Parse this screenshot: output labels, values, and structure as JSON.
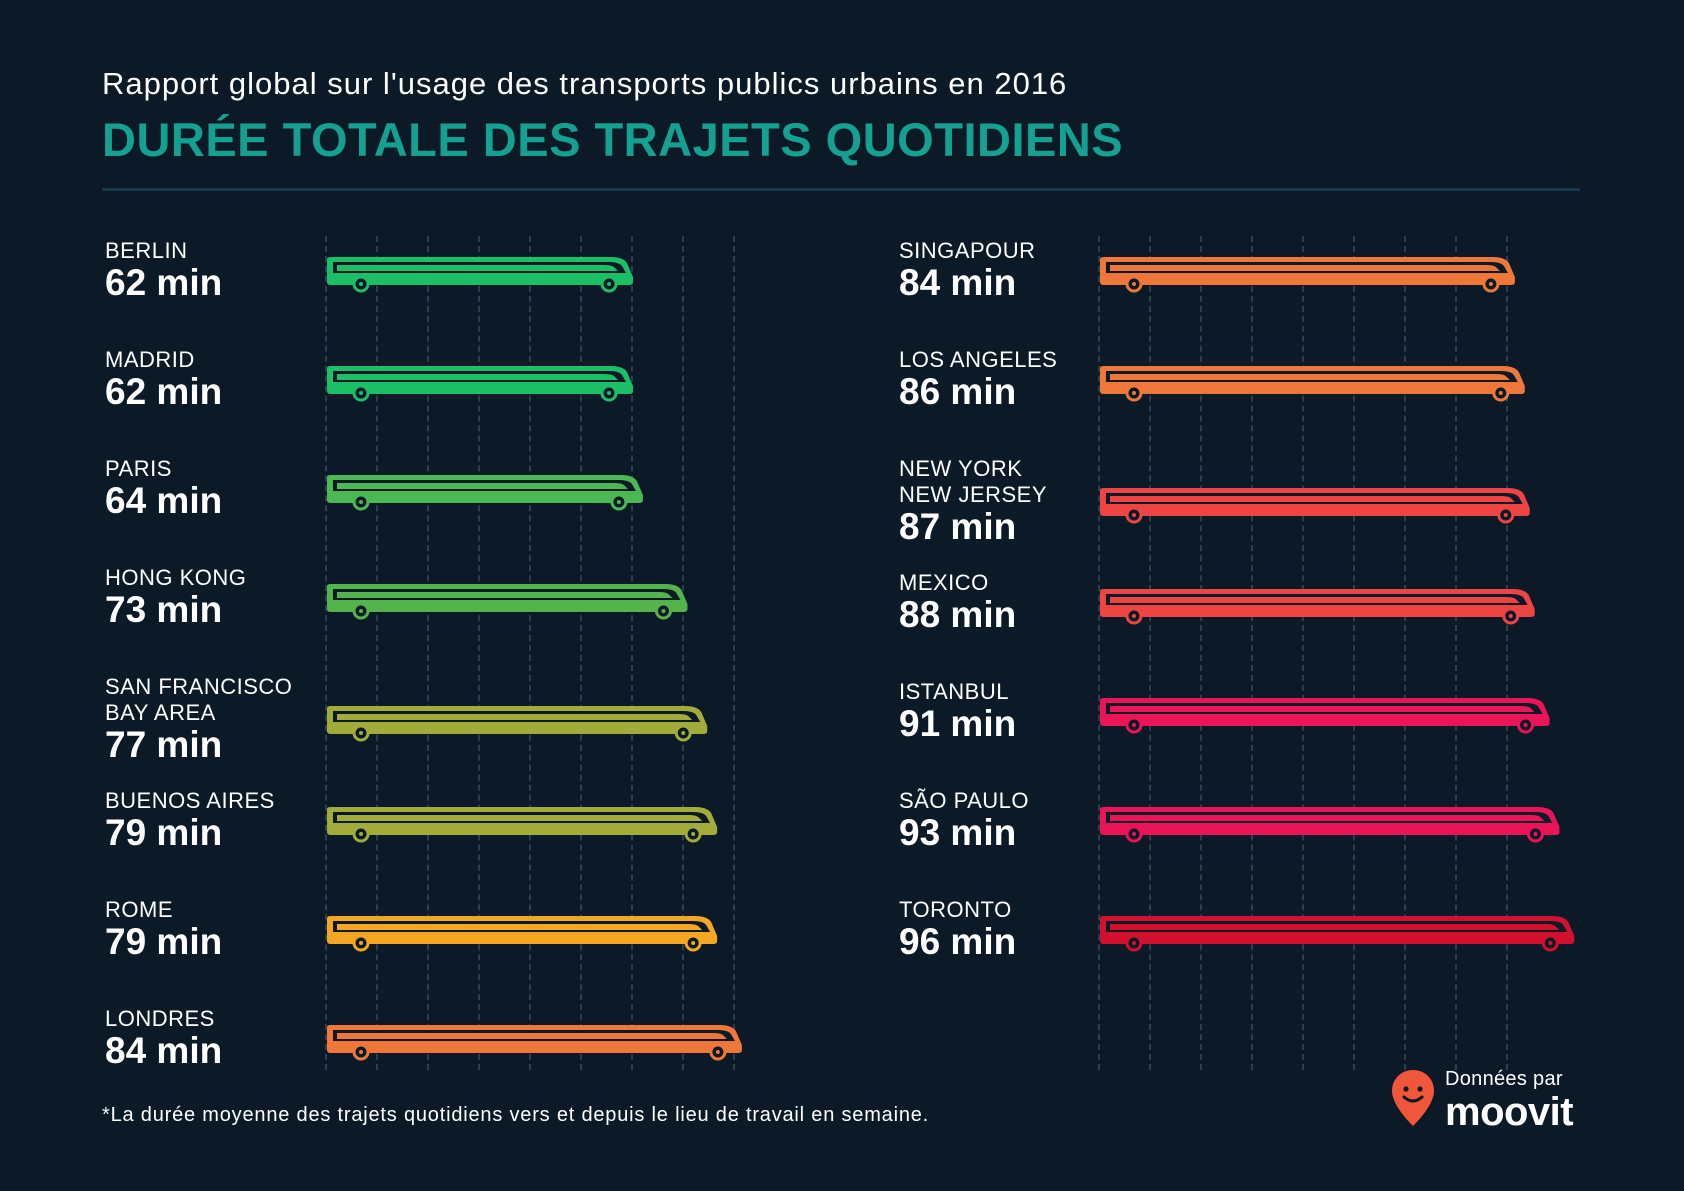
{
  "header": {
    "subtitle": "Rapport global sur l'usage des transports publics urbains en 2016",
    "title": "DURÉE TOTALE DES TRAJETS QUOTIDIENS"
  },
  "chart_data": {
    "type": "bar",
    "title": "DURÉE TOTALE DES TRAJETS QUOTIDIENS",
    "subtitle": "Rapport global sur l'usage des transports publics urbains en 2016",
    "unit": "min",
    "columns": [
      [
        {
          "city": [
            "BERLIN"
          ],
          "value": 62,
          "label": "62 min",
          "color": "#1abf66"
        },
        {
          "city": [
            "MADRID"
          ],
          "value": 62,
          "label": "62 min",
          "color": "#1abf66"
        },
        {
          "city": [
            "PARIS"
          ],
          "value": 64,
          "label": "64 min",
          "color": "#4cb854"
        },
        {
          "city": [
            "HONG KONG"
          ],
          "value": 73,
          "label": "73 min",
          "color": "#55b34c"
        },
        {
          "city": [
            "SAN FRANCISCO",
            "BAY AREA"
          ],
          "value": 77,
          "label": "77 min",
          "color": "#a3ac3a"
        },
        {
          "city": [
            "BUENOS AIRES"
          ],
          "value": 79,
          "label": "79 min",
          "color": "#a3ac3a"
        },
        {
          "city": [
            "ROME"
          ],
          "value": 79,
          "label": "79 min",
          "color": "#f5a623"
        },
        {
          "city": [
            "LONDRES"
          ],
          "value": 84,
          "label": "84 min",
          "color": "#f0773a"
        }
      ],
      [
        {
          "city": [
            "SINGAPOUR"
          ],
          "value": 84,
          "label": "84 min",
          "color": "#f0773a"
        },
        {
          "city": [
            "LOS ANGELES"
          ],
          "value": 86,
          "label": "86 min",
          "color": "#f0773a"
        },
        {
          "city": [
            "NEW YORK",
            "NEW JERSEY"
          ],
          "value": 87,
          "label": "87 min",
          "color": "#ee4444"
        },
        {
          "city": [
            "MEXICO"
          ],
          "value": 88,
          "label": "88 min",
          "color": "#ee4444"
        },
        {
          "city": [
            "ISTANBUL"
          ],
          "value": 91,
          "label": "91 min",
          "color": "#ec1459"
        },
        {
          "city": [
            "SÃO PAULO"
          ],
          "value": 93,
          "label": "93 min",
          "color": "#ec1459"
        },
        {
          "city": [
            "TORONTO"
          ],
          "value": 96,
          "label": "96 min",
          "color": "#d4102f"
        }
      ]
    ]
  },
  "footer": {
    "footnote": "*La durée moyenne des trajets quotidiens vers et depuis le lieu de travail en semaine.",
    "data_by": "Données par",
    "brand": "moovit",
    "brand_color": "#f0573a"
  }
}
